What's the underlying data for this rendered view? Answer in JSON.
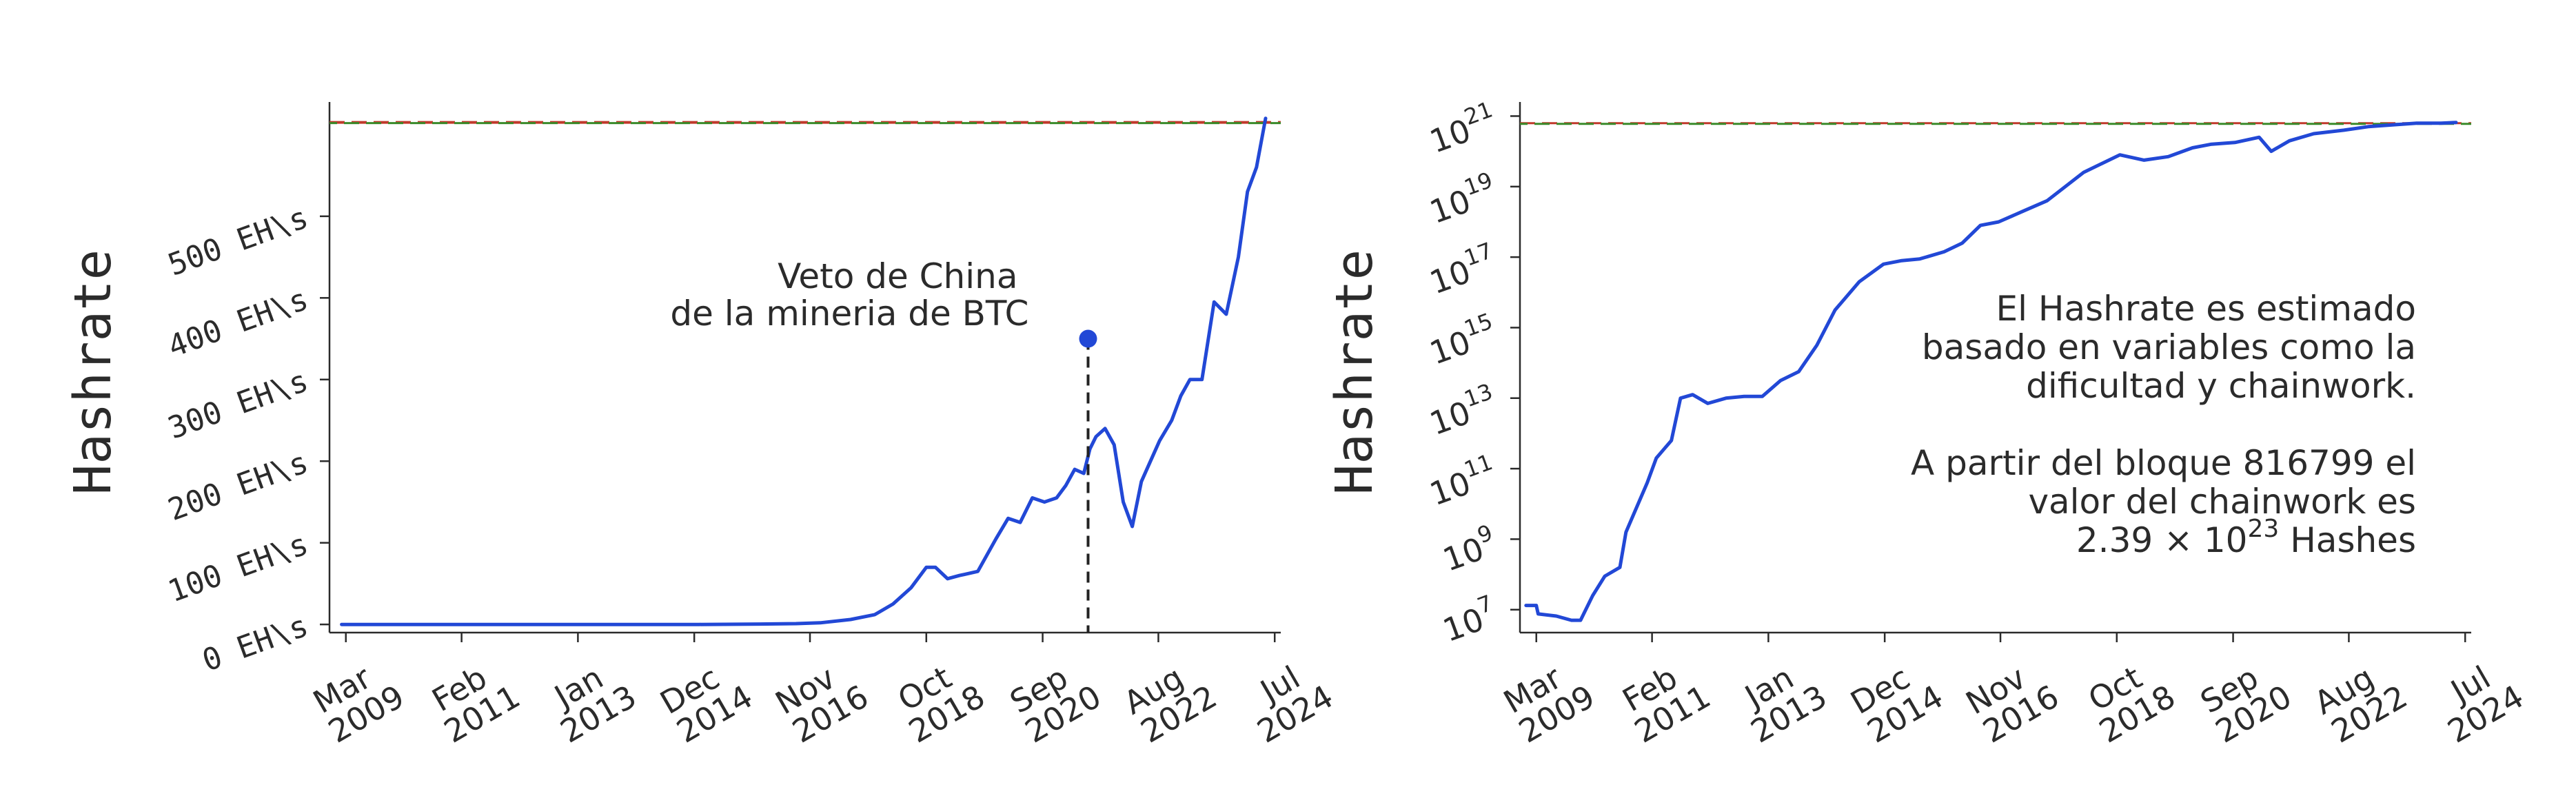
{
  "colors": {
    "series": "#2248d6",
    "ref_red": "#c0392b",
    "ref_green": "#3a8a2a",
    "text": "#2b2b2b"
  },
  "chart_data": [
    {
      "type": "line",
      "ylabel": "Hashrate",
      "yscale": "linear",
      "ylim": [
        -10,
        640
      ],
      "xlim": [
        2008.9,
        2024.6
      ],
      "xticks": [
        {
          "pos": 2009.17,
          "line1": "Mar",
          "line2": "2009"
        },
        {
          "pos": 2011.08,
          "line1": "Feb",
          "line2": "2011"
        },
        {
          "pos": 2013.0,
          "line1": "Jan",
          "line2": "2013"
        },
        {
          "pos": 2014.92,
          "line1": "Dec",
          "line2": "2014"
        },
        {
          "pos": 2016.83,
          "line1": "Nov",
          "line2": "2016"
        },
        {
          "pos": 2018.75,
          "line1": "Oct",
          "line2": "2018"
        },
        {
          "pos": 2020.67,
          "line1": "Sep",
          "line2": "2020"
        },
        {
          "pos": 2022.58,
          "line1": "Aug",
          "line2": "2022"
        },
        {
          "pos": 2024.5,
          "line1": "Jul",
          "line2": "2024"
        }
      ],
      "yticks": [
        {
          "value": 0,
          "label": "0 EH\\s"
        },
        {
          "value": 100,
          "label": "100 EH\\s"
        },
        {
          "value": 200,
          "label": "200 EH\\s"
        },
        {
          "value": 300,
          "label": "300 EH\\s"
        },
        {
          "value": 400,
          "label": "400 EH\\s"
        },
        {
          "value": 500,
          "label": "500 EH\\s"
        }
      ],
      "hlines": [
        {
          "y": 615,
          "style": "dashed"
        }
      ],
      "series": [
        {
          "x": [
            2009.1,
            2012.0,
            2015.0,
            2016.0,
            2016.6,
            2017.0,
            2017.5,
            2017.9,
            2018.2,
            2018.5,
            2018.75,
            2018.9,
            2019.1,
            2019.3,
            2019.6,
            2019.9,
            2020.1,
            2020.3,
            2020.5,
            2020.7,
            2020.9,
            2021.05,
            2021.2,
            2021.35,
            2021.45,
            2021.55,
            2021.7,
            2021.85,
            2022.0,
            2022.15,
            2022.3,
            2022.45,
            2022.6,
            2022.8,
            2022.95,
            2023.1,
            2023.3,
            2023.5,
            2023.7,
            2023.9,
            2024.05,
            2024.2,
            2024.35
          ],
          "y": [
            0,
            0,
            0,
            0.5,
            1,
            2,
            6,
            12,
            25,
            45,
            70,
            70,
            56,
            60,
            65,
            105,
            130,
            125,
            155,
            150,
            155,
            170,
            190,
            185,
            215,
            230,
            240,
            220,
            150,
            120,
            175,
            200,
            225,
            250,
            280,
            300,
            300,
            395,
            380,
            450,
            530,
            560,
            620
          ]
        }
      ],
      "annotation": {
        "lines": [
          "Veto de China",
          "de la mineria de BTC"
        ],
        "event_x": 2021.42,
        "marker_y": 350,
        "dash_y_start": -10
      }
    },
    {
      "type": "line",
      "ylabel": "Hashrate",
      "yscale": "log",
      "ylim_log10": [
        6.35,
        21.4
      ],
      "xlim": [
        2008.9,
        2024.6
      ],
      "xticks": [
        {
          "pos": 2009.17,
          "line1": "Mar",
          "line2": "2009"
        },
        {
          "pos": 2011.08,
          "line1": "Feb",
          "line2": "2011"
        },
        {
          "pos": 2013.0,
          "line1": "Jan",
          "line2": "2013"
        },
        {
          "pos": 2014.92,
          "line1": "Dec",
          "line2": "2014"
        },
        {
          "pos": 2016.83,
          "line1": "Nov",
          "line2": "2016"
        },
        {
          "pos": 2018.75,
          "line1": "Oct",
          "line2": "2018"
        },
        {
          "pos": 2020.67,
          "line1": "Sep",
          "line2": "2020"
        },
        {
          "pos": 2022.58,
          "line1": "Aug",
          "line2": "2022"
        },
        {
          "pos": 2024.5,
          "line1": "Jul",
          "line2": "2024"
        }
      ],
      "yticks": [
        {
          "exp": 7,
          "base": "10",
          "sup": "7"
        },
        {
          "exp": 9,
          "base": "10",
          "sup": "9"
        },
        {
          "exp": 11,
          "base": "10",
          "sup": "11"
        },
        {
          "exp": 13,
          "base": "10",
          "sup": "13"
        },
        {
          "exp": 15,
          "base": "10",
          "sup": "15"
        },
        {
          "exp": 17,
          "base": "10",
          "sup": "17"
        },
        {
          "exp": 19,
          "base": "10",
          "sup": "19"
        },
        {
          "exp": 21,
          "base": "10",
          "sup": "21"
        }
      ],
      "hlines": [
        {
          "y_log10": 20.8,
          "style": "dashed"
        }
      ],
      "series": [
        {
          "x": [
            2009.0,
            2009.17,
            2009.2,
            2009.5,
            2009.75,
            2009.9,
            2010.1,
            2010.3,
            2010.55,
            2010.65,
            2010.8,
            2011.0,
            2011.15,
            2011.4,
            2011.55,
            2011.75,
            2012.0,
            2012.3,
            2012.6,
            2012.9,
            2013.2,
            2013.5,
            2013.8,
            2014.1,
            2014.5,
            2014.9,
            2015.2,
            2015.5,
            2015.9,
            2016.2,
            2016.5,
            2016.8,
            2017.2,
            2017.6,
            2017.9,
            2018.2,
            2018.5,
            2018.8,
            2019.2,
            2019.6,
            2020.0,
            2020.3,
            2020.7,
            2021.1,
            2021.3,
            2021.6,
            2022.0,
            2022.5,
            2022.9,
            2023.3,
            2023.7,
            2024.1,
            2024.35
          ],
          "y_log10": [
            7.12,
            7.12,
            6.88,
            6.82,
            6.7,
            6.7,
            7.4,
            7.95,
            8.2,
            9.2,
            9.8,
            10.6,
            11.3,
            11.8,
            13.0,
            13.1,
            12.85,
            13.0,
            13.05,
            13.05,
            13.5,
            13.75,
            14.5,
            15.5,
            16.3,
            16.8,
            16.9,
            16.95,
            17.15,
            17.4,
            17.9,
            18.0,
            18.3,
            18.6,
            19.0,
            19.4,
            19.65,
            19.9,
            19.75,
            19.85,
            20.1,
            20.2,
            20.25,
            20.4,
            20.0,
            20.3,
            20.5,
            20.6,
            20.7,
            20.75,
            20.8,
            20.8,
            20.82
          ]
        }
      ],
      "annotation": {
        "lines": [
          "El Hashrate es estimado",
          "basado en variables como la",
          "dificultad y chainwork.",
          "",
          "A partir del bloque 816799 el ",
          "valor del chainwork es"
        ],
        "last_line": {
          "prefix": "2.39 × 10",
          "sup": "23",
          "suffix": " Hashes"
        }
      }
    }
  ]
}
